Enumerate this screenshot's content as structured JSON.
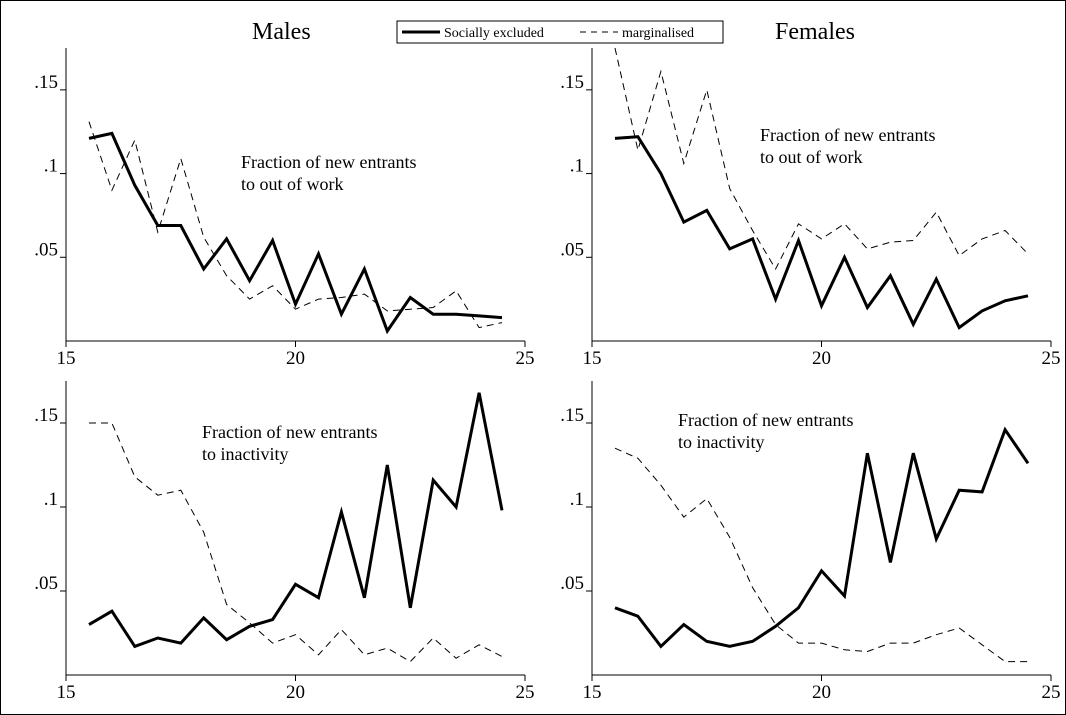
{
  "figure": {
    "header_left": "Males",
    "header_right": "Females",
    "legend": [
      {
        "label": "Socially excluded",
        "style": "solid"
      },
      {
        "label": "marginalised",
        "style": "dashed"
      }
    ]
  },
  "chart_data": [
    {
      "type": "line",
      "annotation": [
        "Fraction of new entrants",
        "to out of work"
      ],
      "x": [
        15.5,
        16,
        16.5,
        17,
        17.5,
        18,
        18.5,
        19,
        19.5,
        20,
        20.5,
        21,
        21.5,
        22,
        22.5,
        23,
        23.5,
        24,
        24.5
      ],
      "series": [
        {
          "name": "Socially excluded",
          "values": [
            0.121,
            0.124,
            0.093,
            0.069,
            0.069,
            0.043,
            0.061,
            0.036,
            0.06,
            0.022,
            0.052,
            0.016,
            0.043,
            0.006,
            0.026,
            0.016,
            0.016,
            0.015,
            0.014
          ]
        },
        {
          "name": "marginalised",
          "values": [
            0.131,
            0.09,
            0.12,
            0.065,
            0.109,
            0.062,
            0.039,
            0.025,
            0.033,
            0.019,
            0.025,
            0.026,
            0.028,
            0.018,
            0.019,
            0.02,
            0.03,
            0.008,
            0.011
          ]
        }
      ],
      "xticks": [
        15,
        20,
        25
      ],
      "yticks": [
        0.05,
        0.1,
        0.15
      ],
      "ytick_labels": [
        ".05",
        ".1",
        ".15"
      ],
      "xlim": [
        15,
        25
      ],
      "ylim": [
        0,
        0.175
      ]
    },
    {
      "type": "line",
      "annotation": [
        "Fraction of new entrants",
        "to out of work"
      ],
      "x": [
        15.5,
        16,
        16.5,
        17,
        17.5,
        18,
        18.5,
        19,
        19.5,
        20,
        20.5,
        21,
        21.5,
        22,
        22.5,
        23,
        23.5,
        24,
        24.5
      ],
      "series": [
        {
          "name": "Socially excluded",
          "values": [
            0.121,
            0.122,
            0.1,
            0.071,
            0.078,
            0.055,
            0.061,
            0.025,
            0.06,
            0.021,
            0.05,
            0.02,
            0.039,
            0.01,
            0.037,
            0.008,
            0.018,
            0.024,
            0.027
          ]
        },
        {
          "name": "marginalised",
          "values": [
            0.175,
            0.114,
            0.161,
            0.106,
            0.15,
            0.091,
            0.066,
            0.043,
            0.07,
            0.061,
            0.07,
            0.055,
            0.059,
            0.06,
            0.077,
            0.051,
            0.061,
            0.066,
            0.052
          ]
        }
      ],
      "xticks": [
        15,
        20,
        25
      ],
      "yticks": [
        0.05,
        0.1,
        0.15
      ],
      "ytick_labels": [
        ".05",
        ".1",
        ".15"
      ],
      "xlim": [
        15,
        25
      ],
      "ylim": [
        0,
        0.175
      ]
    },
    {
      "type": "line",
      "annotation": [
        "Fraction of new entrants",
        "to inactivity"
      ],
      "x": [
        15.5,
        16,
        16.5,
        17,
        17.5,
        18,
        18.5,
        19,
        19.5,
        20,
        20.5,
        21,
        21.5,
        22,
        22.5,
        23,
        23.5,
        24,
        24.5
      ],
      "series": [
        {
          "name": "Socially excluded",
          "values": [
            0.03,
            0.038,
            0.017,
            0.022,
            0.019,
            0.034,
            0.021,
            0.029,
            0.033,
            0.054,
            0.046,
            0.097,
            0.046,
            0.125,
            0.04,
            0.116,
            0.1,
            0.168,
            0.098
          ]
        },
        {
          "name": "marginalised",
          "values": [
            0.15,
            0.15,
            0.118,
            0.107,
            0.11,
            0.085,
            0.042,
            0.031,
            0.019,
            0.024,
            0.012,
            0.027,
            0.012,
            0.016,
            0.008,
            0.022,
            0.01,
            0.018,
            0.011
          ]
        }
      ],
      "xticks": [
        15,
        20,
        25
      ],
      "yticks": [
        0.05,
        0.1,
        0.15
      ],
      "ytick_labels": [
        ".05",
        ".1",
        ".15"
      ],
      "xlim": [
        15,
        25
      ],
      "ylim": [
        0,
        0.175
      ]
    },
    {
      "type": "line",
      "annotation": [
        "Fraction of new entrants",
        "to inactivity"
      ],
      "x": [
        15.5,
        16,
        16.5,
        17,
        17.5,
        18,
        18.5,
        19,
        19.5,
        20,
        20.5,
        21,
        21.5,
        22,
        22.5,
        23,
        23.5,
        24,
        24.5
      ],
      "series": [
        {
          "name": "Socially excluded",
          "values": [
            0.04,
            0.035,
            0.017,
            0.03,
            0.02,
            0.017,
            0.02,
            0.029,
            0.04,
            0.062,
            0.047,
            0.132,
            0.067,
            0.132,
            0.081,
            0.11,
            0.109,
            0.146,
            0.126
          ]
        },
        {
          "name": "marginalised",
          "values": [
            0.135,
            0.129,
            0.113,
            0.094,
            0.105,
            0.082,
            0.052,
            0.03,
            0.019,
            0.019,
            0.015,
            0.014,
            0.019,
            0.019,
            0.024,
            0.028,
            0.018,
            0.008,
            0.008
          ]
        }
      ],
      "xticks": [
        15,
        20,
        25
      ],
      "yticks": [
        0.05,
        0.1,
        0.15
      ],
      "ytick_labels": [
        ".05",
        ".1",
        ".15"
      ],
      "xlim": [
        15,
        25
      ],
      "ylim": [
        0,
        0.175
      ]
    }
  ]
}
